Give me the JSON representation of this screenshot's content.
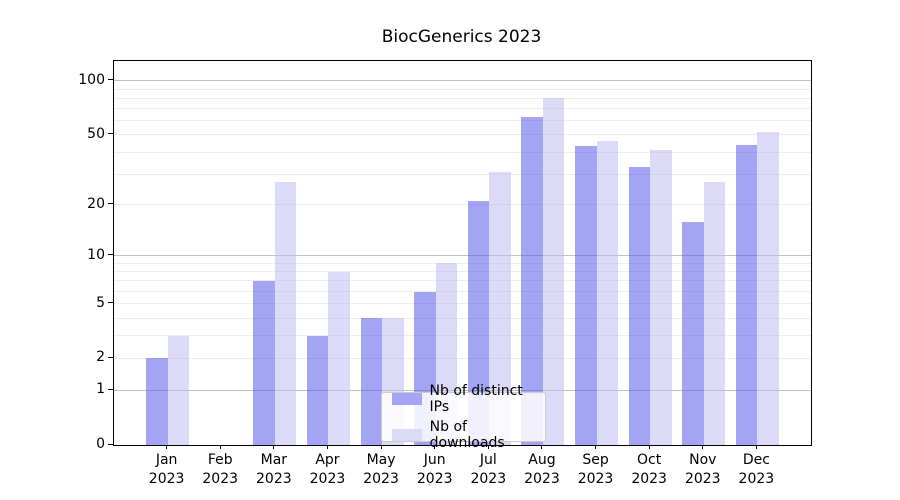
{
  "chart_data": {
    "type": "bar",
    "title": "BiocGenerics 2023",
    "categories": [
      "Jan 2023",
      "Feb 2023",
      "Mar 2023",
      "Apr 2023",
      "May 2023",
      "Jun 2023",
      "Jul 2023",
      "Aug 2023",
      "Sep 2023",
      "Oct 2023",
      "Nov 2023",
      "Dec 2023"
    ],
    "series": [
      {
        "name": "Nb of distinct IPs",
        "values": [
          2,
          0,
          7,
          3,
          4,
          6,
          21,
          63,
          43,
          33,
          16,
          44
        ],
        "color": "#a4a4f4",
        "fill": "rgba(73,73,233,0.5)"
      },
      {
        "name": "Nb of downloads",
        "values": [
          3,
          0,
          27,
          8,
          4,
          9,
          31,
          80,
          46,
          41,
          27,
          52
        ],
        "color": "#dbdbf8",
        "fill": "rgba(183,183,241,0.5)"
      }
    ],
    "yscale": "log1p",
    "ylim": [
      0,
      128
    ],
    "yticks_labeled": [
      0,
      1,
      2,
      5,
      10,
      20,
      50,
      100
    ],
    "grid": {
      "major_values": [
        1,
        10,
        100
      ],
      "major_color": "#c0c0c0",
      "minor_values": [
        2,
        3,
        4,
        5,
        6,
        7,
        8,
        9,
        20,
        30,
        40,
        50,
        60,
        70,
        80,
        90
      ],
      "minor_color": "#ededed"
    },
    "legend_position": "lower-center",
    "xlabel": "",
    "ylabel": ""
  }
}
